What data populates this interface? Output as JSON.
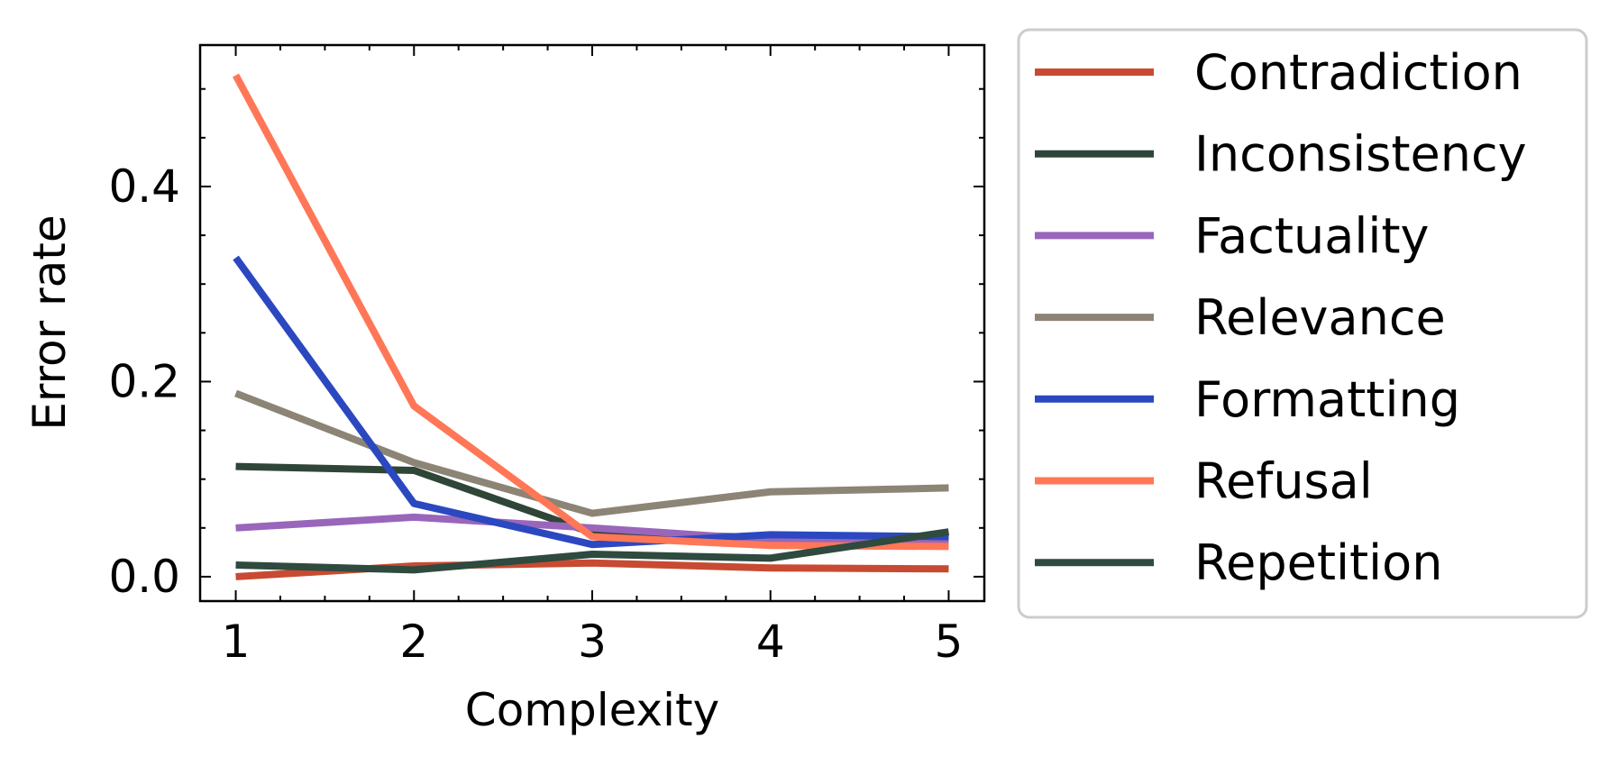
{
  "chart_data": {
    "type": "line",
    "title": "",
    "xlabel": "Complexity",
    "ylabel": "Error rate",
    "x": [
      1,
      2,
      3,
      4,
      5
    ],
    "xlim": [
      0.8,
      5.2
    ],
    "ylim": [
      -0.025,
      0.545
    ],
    "x_ticks": [
      "1",
      "2",
      "3",
      "4",
      "5"
    ],
    "y_ticks": [
      "0.0",
      "0.2",
      "0.4"
    ],
    "y_tick_values": [
      0.0,
      0.2,
      0.4
    ],
    "grid": false,
    "legend_position": "outside-right",
    "series": [
      {
        "name": "Contradiction",
        "color": "#C84A32",
        "values": [
          0.0,
          0.011,
          0.014,
          0.009,
          0.008
        ]
      },
      {
        "name": "Inconsistency",
        "color": "#2F4538",
        "values": [
          0.113,
          0.109,
          0.045,
          0.04,
          0.041
        ]
      },
      {
        "name": "Factuality",
        "color": "#9966BB",
        "values": [
          0.05,
          0.061,
          0.05,
          0.038,
          0.036
        ]
      },
      {
        "name": "Relevance",
        "color": "#8C8475",
        "values": [
          0.188,
          0.117,
          0.065,
          0.087,
          0.091
        ]
      },
      {
        "name": "Formatting",
        "color": "#2B48C0",
        "values": [
          0.327,
          0.075,
          0.033,
          0.043,
          0.041
        ]
      },
      {
        "name": "Refusal",
        "color": "#FF7757",
        "values": [
          0.514,
          0.175,
          0.041,
          0.032,
          0.031
        ]
      },
      {
        "name": "Repetition",
        "color": "#2F4A3E",
        "values": [
          0.012,
          0.007,
          0.023,
          0.019,
          0.046
        ]
      }
    ]
  }
}
